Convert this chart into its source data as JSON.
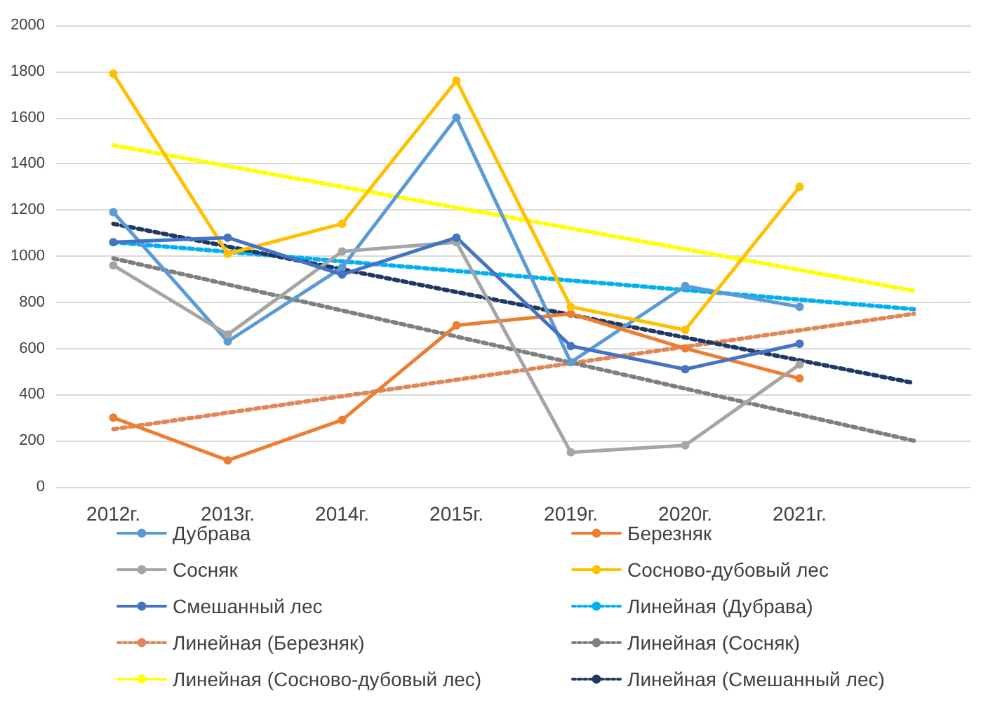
{
  "chart_data": {
    "type": "line",
    "categories": [
      "2012г.",
      "2013г.",
      "2014г.",
      "2015г.",
      "2019г.",
      "2020г.",
      "2021г.",
      null
    ],
    "ylim": [
      0,
      2000
    ],
    "yticks": [
      0,
      200,
      400,
      600,
      800,
      1000,
      1200,
      1400,
      1600,
      1800,
      2000
    ],
    "grid": "y",
    "legend": "bottom",
    "marker": "circle",
    "series": [
      {
        "name": "Дубрава",
        "color": "#5b9bd5",
        "values": [
          1190,
          630,
          950,
          1600,
          540,
          870,
          780,
          null
        ]
      },
      {
        "name": "Березняк",
        "color": "#ed7d31",
        "values": [
          300,
          115,
          290,
          700,
          750,
          600,
          470,
          null
        ]
      },
      {
        "name": "Сосняк",
        "color": "#a5a5a5",
        "values": [
          960,
          660,
          1020,
          1060,
          150,
          180,
          530,
          null
        ]
      },
      {
        "name": "Сосново-дубовый лес",
        "color": "#ffc000",
        "values": [
          1790,
          1010,
          1140,
          1760,
          780,
          680,
          1300,
          null
        ]
      },
      {
        "name": "Смешанный лес",
        "color": "#4472c4",
        "values": [
          1060,
          1080,
          920,
          1080,
          610,
          510,
          620,
          null
        ]
      },
      {
        "name": "Линейная (Дубрава)",
        "color": "#00b0f0",
        "marker": "none",
        "line_style": "dotted",
        "values": [
          1060,
          null,
          null,
          null,
          null,
          null,
          null,
          770
        ]
      },
      {
        "name": "Линейная (Березняк)",
        "color": "#e0875a",
        "marker": "none",
        "line_style": "dotted",
        "values": [
          250,
          null,
          null,
          null,
          null,
          null,
          null,
          750
        ]
      },
      {
        "name": "Линейная (Сосняк)",
        "color": "#7f7f7f",
        "marker": "none",
        "line_style": "dotted",
        "values": [
          990,
          null,
          null,
          null,
          null,
          null,
          null,
          200
        ]
      },
      {
        "name": "Линейная (Сосново-дубовый лес)",
        "color": "#ffff00",
        "marker": "none",
        "line_style": "dotted",
        "values": [
          1480,
          null,
          null,
          null,
          null,
          null,
          null,
          850
        ]
      },
      {
        "name": "Линейная (Смешанный лес)",
        "color": "#1f3864",
        "marker": "none",
        "line_style": "dotted",
        "values": [
          1140,
          null,
          null,
          null,
          null,
          null,
          null,
          450
        ]
      }
    ]
  }
}
